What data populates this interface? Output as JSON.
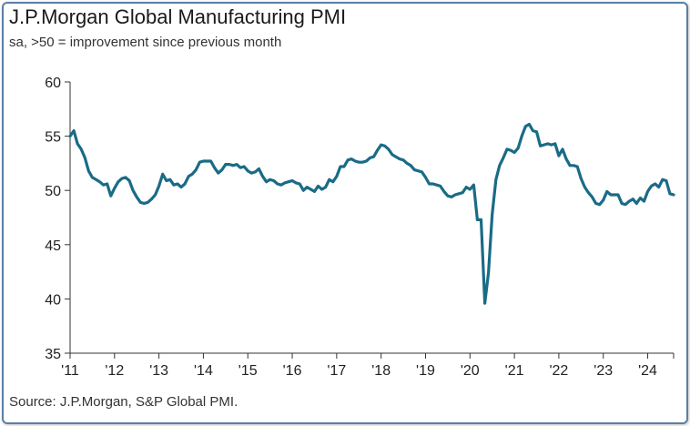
{
  "chart_data": {
    "type": "line",
    "title": "J.P.Morgan Global Manufacturing PMI",
    "subtitle": "sa, >50 = improvement since previous month",
    "source": "Source: J.P.Morgan, S&P Global PMI.",
    "xlabel": "",
    "ylabel": "",
    "ylim": [
      35,
      60
    ],
    "yticks": [
      "35",
      "40",
      "45",
      "50",
      "55",
      "60"
    ],
    "xticks": [
      "'11",
      "'12",
      "'13",
      "'14",
      "'15",
      "'16",
      "'17",
      "'18",
      "'19",
      "'20",
      "'21",
      "'22",
      "'23",
      "'24"
    ],
    "grid": false,
    "line_color": "#1a6b86",
    "series": [
      {
        "name": "Global Manufacturing PMI",
        "x_start": 2011.0,
        "step_months": 1,
        "values": [
          55.0,
          55.5,
          54.3,
          53.8,
          53.0,
          51.8,
          51.2,
          51.0,
          50.8,
          50.5,
          50.6,
          49.5,
          50.2,
          50.8,
          51.1,
          51.2,
          50.9,
          50.0,
          49.4,
          48.9,
          48.8,
          48.9,
          49.2,
          49.6,
          50.4,
          51.5,
          50.9,
          51.0,
          50.5,
          50.6,
          50.3,
          50.6,
          51.3,
          51.5,
          51.9,
          52.6,
          52.7,
          52.7,
          52.7,
          52.1,
          51.6,
          51.9,
          52.4,
          52.4,
          52.3,
          52.4,
          52.1,
          52.2,
          51.8,
          51.6,
          51.7,
          52.0,
          51.3,
          50.8,
          51.0,
          50.9,
          50.6,
          50.5,
          50.7,
          50.8,
          50.9,
          50.7,
          50.6,
          50.0,
          50.3,
          50.1,
          49.9,
          50.4,
          50.1,
          50.3,
          51.0,
          50.8,
          51.3,
          52.2,
          52.2,
          52.8,
          52.9,
          52.7,
          52.6,
          52.6,
          52.7,
          53.0,
          53.1,
          53.7,
          54.2,
          54.1,
          53.8,
          53.3,
          53.1,
          52.9,
          52.8,
          52.5,
          52.3,
          51.9,
          51.8,
          51.7,
          51.2,
          50.6,
          50.6,
          50.5,
          50.4,
          49.9,
          49.5,
          49.4,
          49.6,
          49.7,
          49.8,
          50.3,
          50.1,
          50.5,
          47.3,
          47.3,
          39.6,
          42.4,
          47.8,
          51.0,
          52.3,
          53.0,
          53.8,
          53.7,
          53.5,
          53.9,
          55.0,
          55.9,
          56.1,
          55.5,
          55.4,
          54.1,
          54.2,
          54.3,
          54.2,
          54.3,
          53.2,
          53.8,
          52.9,
          52.3,
          52.3,
          52.2,
          51.1,
          50.3,
          49.8,
          49.4,
          48.8,
          48.7,
          49.1,
          49.9,
          49.6,
          49.6,
          49.6,
          48.8,
          48.7,
          49.0,
          49.2,
          48.8,
          49.3,
          49.0,
          49.9,
          50.4,
          50.6,
          50.3,
          51.0,
          50.9,
          49.7,
          49.6
        ]
      }
    ]
  }
}
